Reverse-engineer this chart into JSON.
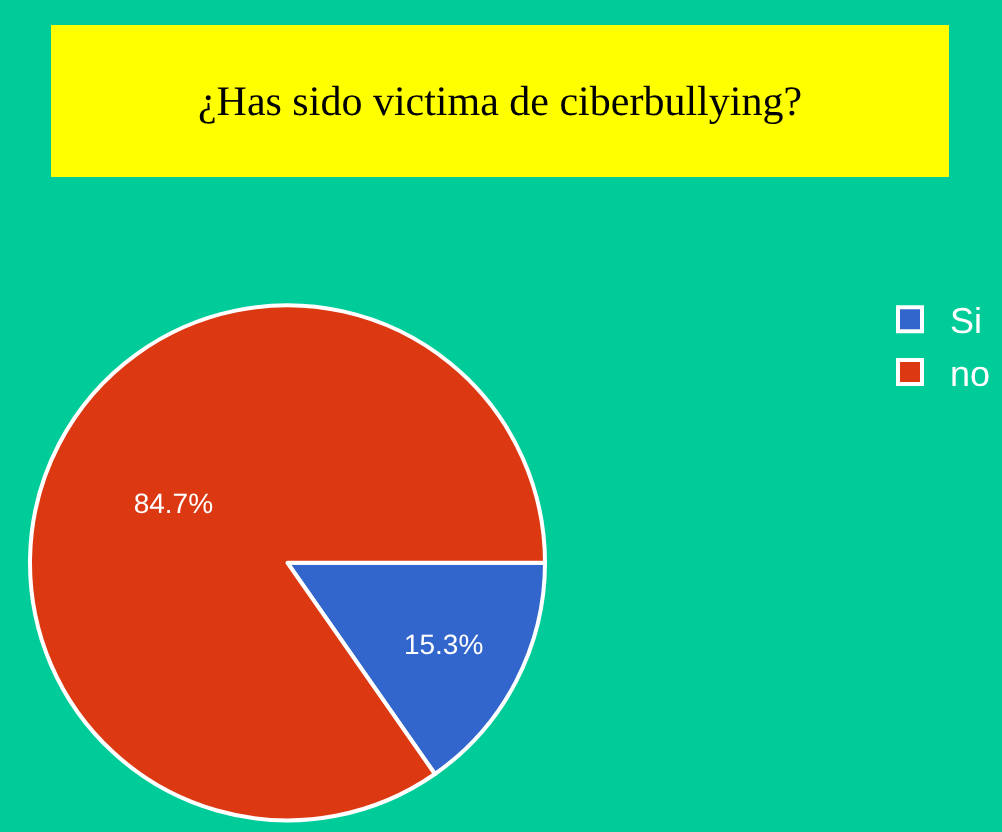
{
  "chart_data": {
    "type": "pie",
    "title": "¿Has sido victima de ciberbullying?",
    "categories": [
      "Si",
      "no"
    ],
    "values": [
      15.3,
      84.7
    ],
    "colors": [
      "#3366cc",
      "#dc3912"
    ],
    "value_labels": [
      "15.3%",
      "84.7%"
    ],
    "legend": "top right"
  }
}
